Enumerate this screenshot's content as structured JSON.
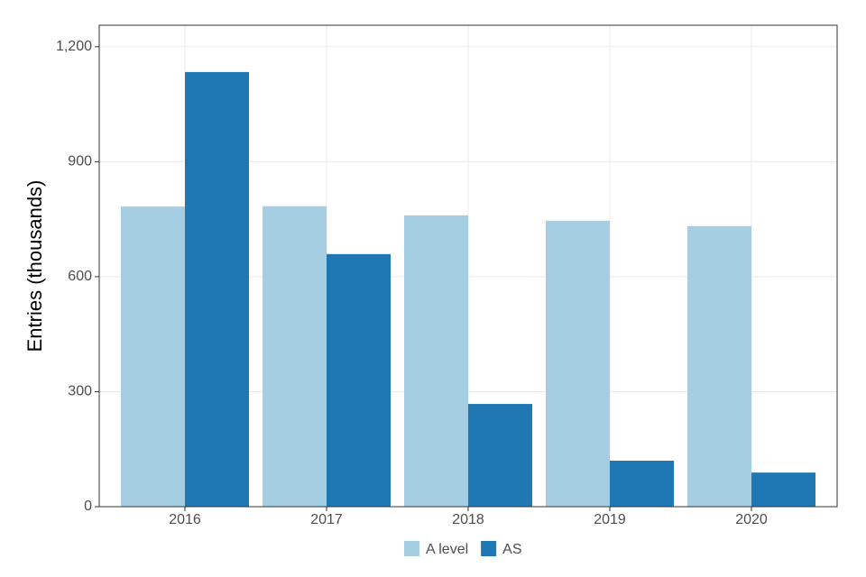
{
  "chart_data": {
    "type": "bar",
    "y_label": "Entries (thousands)",
    "categories": [
      "2016",
      "2017",
      "2018",
      "2019",
      "2020"
    ],
    "series": [
      {
        "name": "A level",
        "color": "#a6cee3",
        "values": [
          783,
          784,
          760,
          746,
          732
        ]
      },
      {
        "name": "AS",
        "color": "#1f78b4",
        "values": [
          1134,
          659,
          268,
          120,
          89
        ]
      }
    ],
    "ylim": [
      0,
      1256
    ],
    "yticks": [
      0,
      300,
      600,
      900,
      {
        "value": 1200,
        "label": "1,200"
      }
    ],
    "grid": true
  }
}
